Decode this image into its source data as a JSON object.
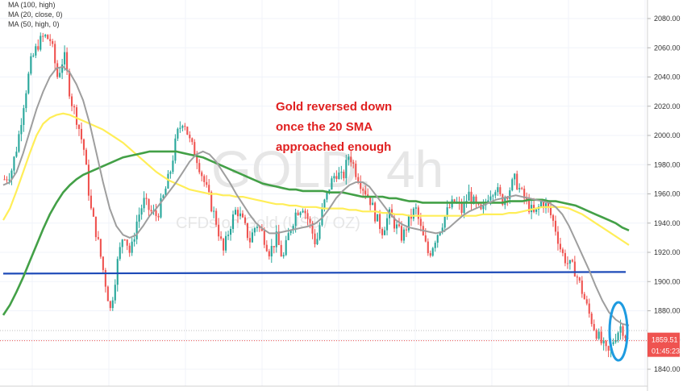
{
  "legend": [
    {
      "label": "MA (100, high)"
    },
    {
      "label": "MA (20, close, 0)"
    },
    {
      "label": "MA (50, high, 0)"
    }
  ],
  "watermark": {
    "symbol": "GOLD, 4h",
    "name": "CFDs on Gold (US$ / OZ)"
  },
  "annotation": {
    "lines": [
      "Gold reversed down",
      "once the 20 SMA",
      "approached enough"
    ]
  },
  "price_tag": {
    "price": "1859.51",
    "countdown": "01:45:23",
    "color": "#ef5350"
  },
  "colors": {
    "up": "#26a69a",
    "down": "#ef5350",
    "ma100": "#ffee58",
    "ma20": "#9e9e9e",
    "ma50": "#43a047",
    "support": "#1e4bb8",
    "ellipse": "#1e9be0",
    "annotation": "#e02020"
  },
  "chart_data": {
    "type": "candlestick",
    "symbol": "GOLD",
    "timeframe": "4h",
    "y_ticks": [
      1840,
      1860,
      1880,
      1900,
      1920,
      1940,
      1960,
      1980,
      2000,
      2020,
      2040,
      2060,
      2080
    ],
    "ylim": [
      1834,
      2094
    ],
    "support_level": 1906,
    "last_price": 1859.51,
    "ohlc_path": [
      1970,
      1975,
      1995,
      2025,
      2050,
      2062,
      2068,
      2065,
      2040,
      2055,
      2025,
      2010,
      1990,
      1950,
      1930,
      1905,
      1880,
      1912,
      1935,
      1918,
      1942,
      1955,
      1948,
      1945,
      1958,
      1975,
      2000,
      2012,
      1995,
      1985,
      1970,
      1955,
      1940,
      1920,
      1938,
      1950,
      1940,
      1928,
      1940,
      1932,
      1920,
      1930,
      1915,
      1935,
      1948,
      1952,
      1940,
      1925,
      1950,
      1965,
      1975,
      1970,
      1988,
      1975,
      1965,
      1958,
      1944,
      1935,
      1946,
      1938,
      1930,
      1942,
      1950,
      1932,
      1918,
      1930,
      1940,
      1950,
      1955,
      1948,
      1960,
      1952,
      1946,
      1960,
      1965,
      1955,
      1962,
      1970,
      1960,
      1952,
      1945,
      1955,
      1950,
      1938,
      1920,
      1912,
      1908,
      1895,
      1880,
      1868,
      1858,
      1850,
      1862,
      1870,
      1860
    ],
    "ma20": [
      1966,
      1968,
      1975,
      1988,
      2003,
      2018,
      2030,
      2040,
      2046,
      2047,
      2043,
      2035,
      2024,
      2008,
      1988,
      1968,
      1950,
      1938,
      1932,
      1930,
      1932,
      1938,
      1945,
      1950,
      1956,
      1962,
      1968,
      1975,
      1982,
      1987,
      1989,
      1987,
      1982,
      1975,
      1968,
      1960,
      1953,
      1946,
      1940,
      1936,
      1933,
      1933,
      1934,
      1935,
      1936,
      1937,
      1938,
      1940,
      1944,
      1950,
      1957,
      1962,
      1966,
      1968,
      1968,
      1965,
      1959,
      1953,
      1947,
      1942,
      1939,
      1937,
      1936,
      1935,
      1934,
      1933,
      1934,
      1937,
      1941,
      1945,
      1948,
      1950,
      1952,
      1954,
      1956,
      1957,
      1958,
      1959,
      1958,
      1957,
      1956,
      1955,
      1954,
      1951,
      1946,
      1938,
      1928,
      1918,
      1908,
      1897,
      1887,
      1879,
      1874,
      1871,
      1870
    ],
    "ma50": [
      1877,
      1884,
      1893,
      1903,
      1914,
      1925,
      1936,
      1946,
      1954,
      1961,
      1966,
      1970,
      1973,
      1975,
      1977,
      1979,
      1981,
      1983,
      1985,
      1986,
      1987,
      1988,
      1989,
      1989,
      1989,
      1989,
      1989,
      1988,
      1987,
      1986,
      1985,
      1983,
      1981,
      1979,
      1977,
      1975,
      1973,
      1971,
      1969,
      1967,
      1966,
      1965,
      1964,
      1963,
      1963,
      1962,
      1962,
      1962,
      1962,
      1961,
      1961,
      1961,
      1960,
      1959,
      1958,
      1958,
      1958,
      1958,
      1957,
      1957,
      1956,
      1955,
      1955,
      1954,
      1954,
      1954,
      1954,
      1954,
      1954,
      1954,
      1954,
      1954,
      1954,
      1954,
      1954,
      1954,
      1955,
      1955,
      1955,
      1956,
      1956,
      1956,
      1955,
      1955,
      1954,
      1953,
      1952,
      1950,
      1948,
      1946,
      1944,
      1942,
      1940,
      1937,
      1935
    ],
    "ma100": [
      1942,
      1950,
      1962,
      1975,
      1988,
      2000,
      2008,
      2012,
      2014,
      2015,
      2014,
      2012,
      2010,
      2008,
      2006,
      2004,
      2001,
      1998,
      1995,
      1991,
      1987,
      1983,
      1979,
      1975,
      1972,
      1969,
      1967,
      1965,
      1963,
      1962,
      1961,
      1960,
      1960,
      1959,
      1959,
      1958,
      1958,
      1957,
      1956,
      1955,
      1954,
      1953,
      1953,
      1952,
      1952,
      1951,
      1951,
      1951,
      1950,
      1950,
      1950,
      1950,
      1949,
      1949,
      1948,
      1948,
      1948,
      1947,
      1947,
      1946,
      1946,
      1945,
      1945,
      1945,
      1945,
      1945,
      1945,
      1945,
      1945,
      1945,
      1945,
      1945,
      1946,
      1946,
      1946,
      1946,
      1947,
      1947,
      1948,
      1949,
      1950,
      1951,
      1951,
      1951,
      1951,
      1950,
      1948,
      1946,
      1943,
      1940,
      1937,
      1934,
      1931,
      1928,
      1925
    ]
  }
}
